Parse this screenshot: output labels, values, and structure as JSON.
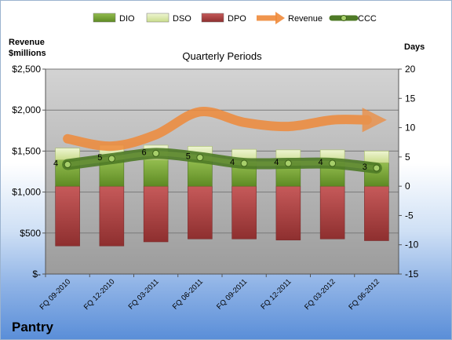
{
  "chart_data": {
    "type": "bar",
    "title": "Quarterly Periods",
    "company": "Pantry",
    "left_axis": {
      "title_lines": [
        "Revenue",
        "$millions"
      ],
      "range": [
        0,
        2500
      ],
      "ticks": [
        0,
        500,
        1000,
        1500,
        2000,
        2500
      ],
      "tick_labels": [
        "$-",
        "$500",
        "$1,000",
        "$1,500",
        "$2,000",
        "$2,500"
      ]
    },
    "right_axis": {
      "title": "Days",
      "range": [
        -15,
        20
      ],
      "ticks": [
        -15,
        -10,
        -5,
        0,
        5,
        10,
        15,
        20
      ],
      "tick_labels": [
        "-15",
        "-10",
        "-5",
        "0",
        "5",
        "10",
        "15",
        "20"
      ]
    },
    "categories": [
      "FQ 09-2010",
      "FQ 12-2010",
      "FQ 03-2011",
      "FQ 06-2011",
      "FQ 09-2011",
      "FQ 12-2011",
      "FQ 03-2012",
      "FQ 06-2012"
    ],
    "series": [
      {
        "name": "DIO",
        "kind": "bar",
        "axis": "right",
        "color": "#7aa33a",
        "values": [
          4.5,
          4.5,
          4.5,
          4.5,
          4.0,
          4.0,
          4.0,
          4.0
        ]
      },
      {
        "name": "DSO",
        "kind": "bar",
        "axis": "right",
        "color": "#d6e5a6",
        "values": [
          2.0,
          2.5,
          2.5,
          2.3,
          2.3,
          2.2,
          2.2,
          2.0
        ]
      },
      {
        "name": "DPO",
        "kind": "bar",
        "axis": "right",
        "color": "#b54a4a",
        "values": [
          -10.2,
          -10.2,
          -9.5,
          -9.0,
          -9.0,
          -9.2,
          -9.0,
          -9.3
        ]
      },
      {
        "name": "Revenue",
        "kind": "line",
        "axis": "left",
        "color": "#ef8a3a",
        "values": [
          1650,
          1560,
          1700,
          1980,
          1850,
          1800,
          1880,
          1880
        ]
      },
      {
        "name": "CCC",
        "kind": "line",
        "axis": "right",
        "color": "#4e7a26",
        "values": [
          3.7,
          4.7,
          5.6,
          4.9,
          3.9,
          3.9,
          3.9,
          3.1
        ]
      }
    ],
    "data_labels": [
      "4",
      "5",
      "6",
      "5",
      "4",
      "4",
      "4",
      "3"
    ],
    "legend": [
      "DIO",
      "DSO",
      "DPO",
      "Revenue",
      "CCC"
    ],
    "legend_position": "top",
    "grid": true
  }
}
